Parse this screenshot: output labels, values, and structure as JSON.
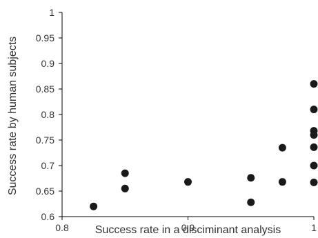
{
  "chart_data": {
    "type": "scatter",
    "title": "",
    "xlabel": "Success rate in a disciminant analysis",
    "ylabel": "Success rate by human subjects",
    "xlim": [
      0.8,
      1.0
    ],
    "ylim": [
      0.6,
      1.0
    ],
    "xticks": [
      0.8,
      0.9,
      1.0
    ],
    "xtick_labels": [
      "0.8",
      "0.9",
      "1"
    ],
    "yticks": [
      0.6,
      0.65,
      0.7,
      0.75,
      0.8,
      0.85,
      0.9,
      0.95,
      1.0
    ],
    "ytick_labels": [
      "0.6",
      "0.65",
      "0.7",
      "0.75",
      "0.8",
      "0.85",
      "0.9",
      "0.95",
      "1"
    ],
    "grid": false,
    "point_color": "#1a1a1a",
    "points": [
      {
        "x": 0.825,
        "y": 0.62
      },
      {
        "x": 0.85,
        "y": 0.685
      },
      {
        "x": 0.85,
        "y": 0.655
      },
      {
        "x": 0.9,
        "y": 0.668
      },
      {
        "x": 0.95,
        "y": 0.676
      },
      {
        "x": 0.95,
        "y": 0.628
      },
      {
        "x": 0.975,
        "y": 0.735
      },
      {
        "x": 0.975,
        "y": 0.668
      },
      {
        "x": 1.0,
        "y": 0.86
      },
      {
        "x": 1.0,
        "y": 0.81
      },
      {
        "x": 1.0,
        "y": 0.768
      },
      {
        "x": 1.0,
        "y": 0.76
      },
      {
        "x": 1.0,
        "y": 0.736
      },
      {
        "x": 1.0,
        "y": 0.7
      },
      {
        "x": 1.0,
        "y": 0.667
      }
    ]
  }
}
